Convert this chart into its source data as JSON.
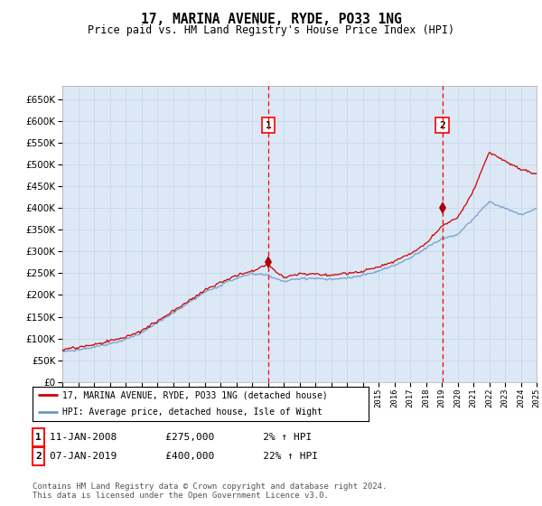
{
  "title": "17, MARINA AVENUE, RYDE, PO33 1NG",
  "subtitle": "Price paid vs. HM Land Registry's House Price Index (HPI)",
  "background_color": "#ffffff",
  "plot_bg_color": "#dce8f5",
  "grid_color": "#c8d8e8",
  "hpi_color": "#6699cc",
  "price_color": "#cc0000",
  "marker_color": "#aa0000",
  "ylim_min": 0,
  "ylim_max": 680000,
  "yticks": [
    0,
    50000,
    100000,
    150000,
    200000,
    250000,
    300000,
    350000,
    400000,
    450000,
    500000,
    550000,
    600000,
    650000
  ],
  "sale1_year": 2008.04,
  "sale2_year": 2019.04,
  "sale1_price": 275000,
  "sale2_price": 400000,
  "sale1_date": "11-JAN-2008",
  "sale2_date": "07-JAN-2019",
  "sale1_pct": "2%",
  "sale2_pct": "22%",
  "legend_line1": "17, MARINA AVENUE, RYDE, PO33 1NG (detached house)",
  "legend_line2": "HPI: Average price, detached house, Isle of Wight",
  "footer": "Contains HM Land Registry data © Crown copyright and database right 2024.\nThis data is licensed under the Open Government Licence v3.0."
}
